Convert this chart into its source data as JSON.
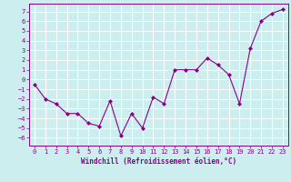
{
  "xlabel": "Windchill (Refroidissement éolien,°C)",
  "x_values": [
    0,
    1,
    2,
    3,
    4,
    5,
    6,
    7,
    8,
    9,
    10,
    11,
    12,
    13,
    14,
    15,
    16,
    17,
    18,
    19,
    20,
    21,
    22,
    23
  ],
  "y_values": [
    -0.5,
    -2.0,
    -2.5,
    -3.5,
    -3.5,
    -4.5,
    -4.8,
    -2.2,
    -5.8,
    -3.5,
    -5.0,
    -1.8,
    -2.5,
    1.0,
    1.0,
    1.0,
    2.2,
    1.5,
    0.5,
    -2.5,
    3.2,
    6.0,
    6.8,
    7.2
  ],
  "line_color": "#880088",
  "marker": "D",
  "markersize": 2.0,
  "bg_color": "#cceeee",
  "grid_color": "#ffffff",
  "ylim": [
    -6.8,
    7.8
  ],
  "xlim": [
    -0.5,
    23.5
  ],
  "yticks": [
    -6,
    -5,
    -4,
    -3,
    -2,
    -1,
    0,
    1,
    2,
    3,
    4,
    5,
    6,
    7
  ],
  "xticks": [
    0,
    1,
    2,
    3,
    4,
    5,
    6,
    7,
    8,
    9,
    10,
    11,
    12,
    13,
    14,
    15,
    16,
    17,
    18,
    19,
    20,
    21,
    22,
    23
  ],
  "tick_color": "#880088",
  "label_color": "#880088",
  "tick_fontsize": 5.0,
  "xlabel_fontsize": 5.5
}
